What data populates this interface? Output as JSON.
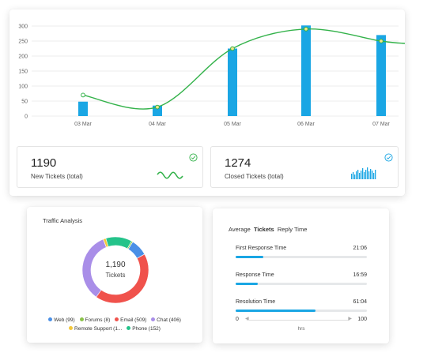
{
  "chart_data": {
    "type": "bar",
    "categories": [
      "03 Mar",
      "04 Mar",
      "05 Mar",
      "06 Mar",
      "07 Mar"
    ],
    "y_ticks": [
      "300",
      "250",
      "200",
      "150",
      "100",
      "50",
      "0"
    ],
    "ylim": [
      0,
      300
    ],
    "bar_values": [
      48,
      35,
      225,
      302,
      270
    ],
    "line_values": [
      70,
      30,
      225,
      290,
      250
    ],
    "colors": {
      "bar": "#1aa6e4",
      "line": "#33b24a"
    },
    "grid": true
  },
  "stats": {
    "new": {
      "value": "1190",
      "label": "New Tickets (total)",
      "accent": "#33b24a"
    },
    "closed": {
      "value": "1274",
      "label": "Closed  Tickets (total)",
      "accent": "#1aa6e4"
    }
  },
  "traffic": {
    "title": "Traffic Analysis",
    "center_value": "1,190",
    "center_label": "Tickets",
    "segments": [
      {
        "label": "Web (99)",
        "value": 99,
        "color": "#4a8fe6"
      },
      {
        "label": "Forums (8)",
        "value": 8,
        "color": "#8bc34a"
      },
      {
        "label": "Email (509)",
        "value": 509,
        "color": "#f0524c"
      },
      {
        "label": "Chat (406)",
        "value": 406,
        "color": "#a98ee8"
      },
      {
        "label": "Remote Support (1...",
        "value": 16,
        "color": "#f4c83a"
      },
      {
        "label": "Phone (152)",
        "value": 152,
        "color": "#24c38a"
      }
    ]
  },
  "reply": {
    "title_prefix": "Average",
    "title_bold": "Tickets",
    "title_suffix": "Reply Time",
    "rows": [
      {
        "name": "First Response Time",
        "time": "21:06",
        "fraction": 0.21
      },
      {
        "name": "Response Time",
        "time": "16:59",
        "fraction": 0.17
      },
      {
        "name": "Resolution Time",
        "time": "61:04",
        "fraction": 0.61
      }
    ],
    "axis_min": "0",
    "axis_max": "100",
    "axis_unit": "hrs"
  }
}
